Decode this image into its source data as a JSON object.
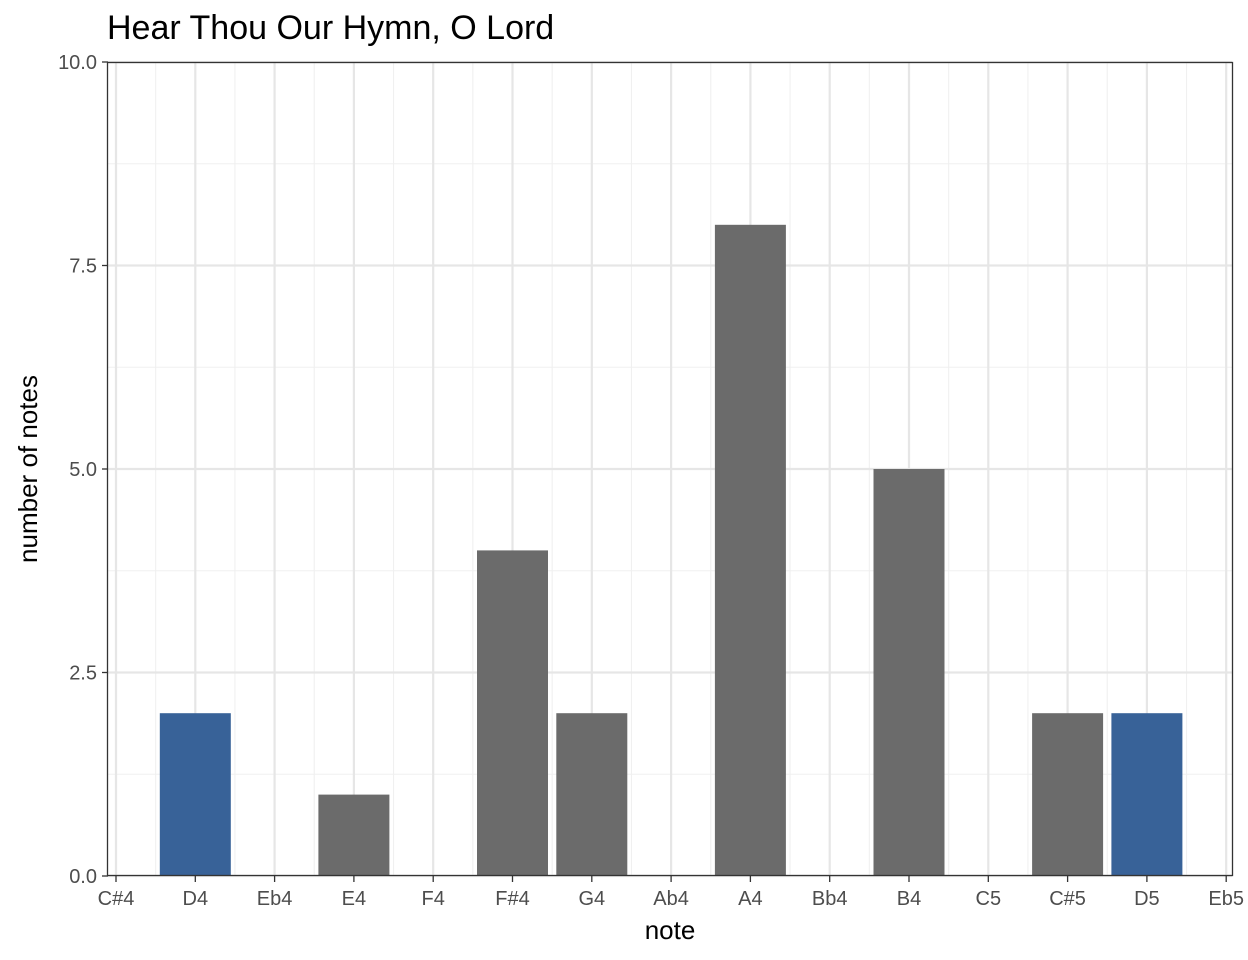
{
  "chart_data": {
    "type": "bar",
    "title": "Hear Thou Our Hymn, O Lord",
    "xlabel": "note",
    "ylabel": "number of notes",
    "categories": [
      "C#4",
      "D4",
      "Eb4",
      "E4",
      "F4",
      "F#4",
      "G4",
      "Ab4",
      "A4",
      "Bb4",
      "B4",
      "C5",
      "C#5",
      "D5",
      "Eb5"
    ],
    "values": [
      0,
      2,
      0,
      1,
      0,
      4,
      2,
      0,
      8,
      0,
      5,
      0,
      2,
      2,
      0
    ],
    "highlighted": [
      "D4",
      "D5"
    ],
    "ylim": [
      0,
      10
    ],
    "y_ticks": [
      "0.0",
      "2.5",
      "5.0",
      "7.5",
      "10.0"
    ],
    "y_tick_values": [
      0,
      2.5,
      5,
      7.5,
      10
    ],
    "grid": true,
    "legend": "none",
    "colors": {
      "bar_default": "#6b6b6b",
      "bar_highlight": "#386298",
      "grid_major": "#e6e6e6",
      "grid_minor": "#f0f0f0",
      "panel_border": "#333333"
    }
  }
}
